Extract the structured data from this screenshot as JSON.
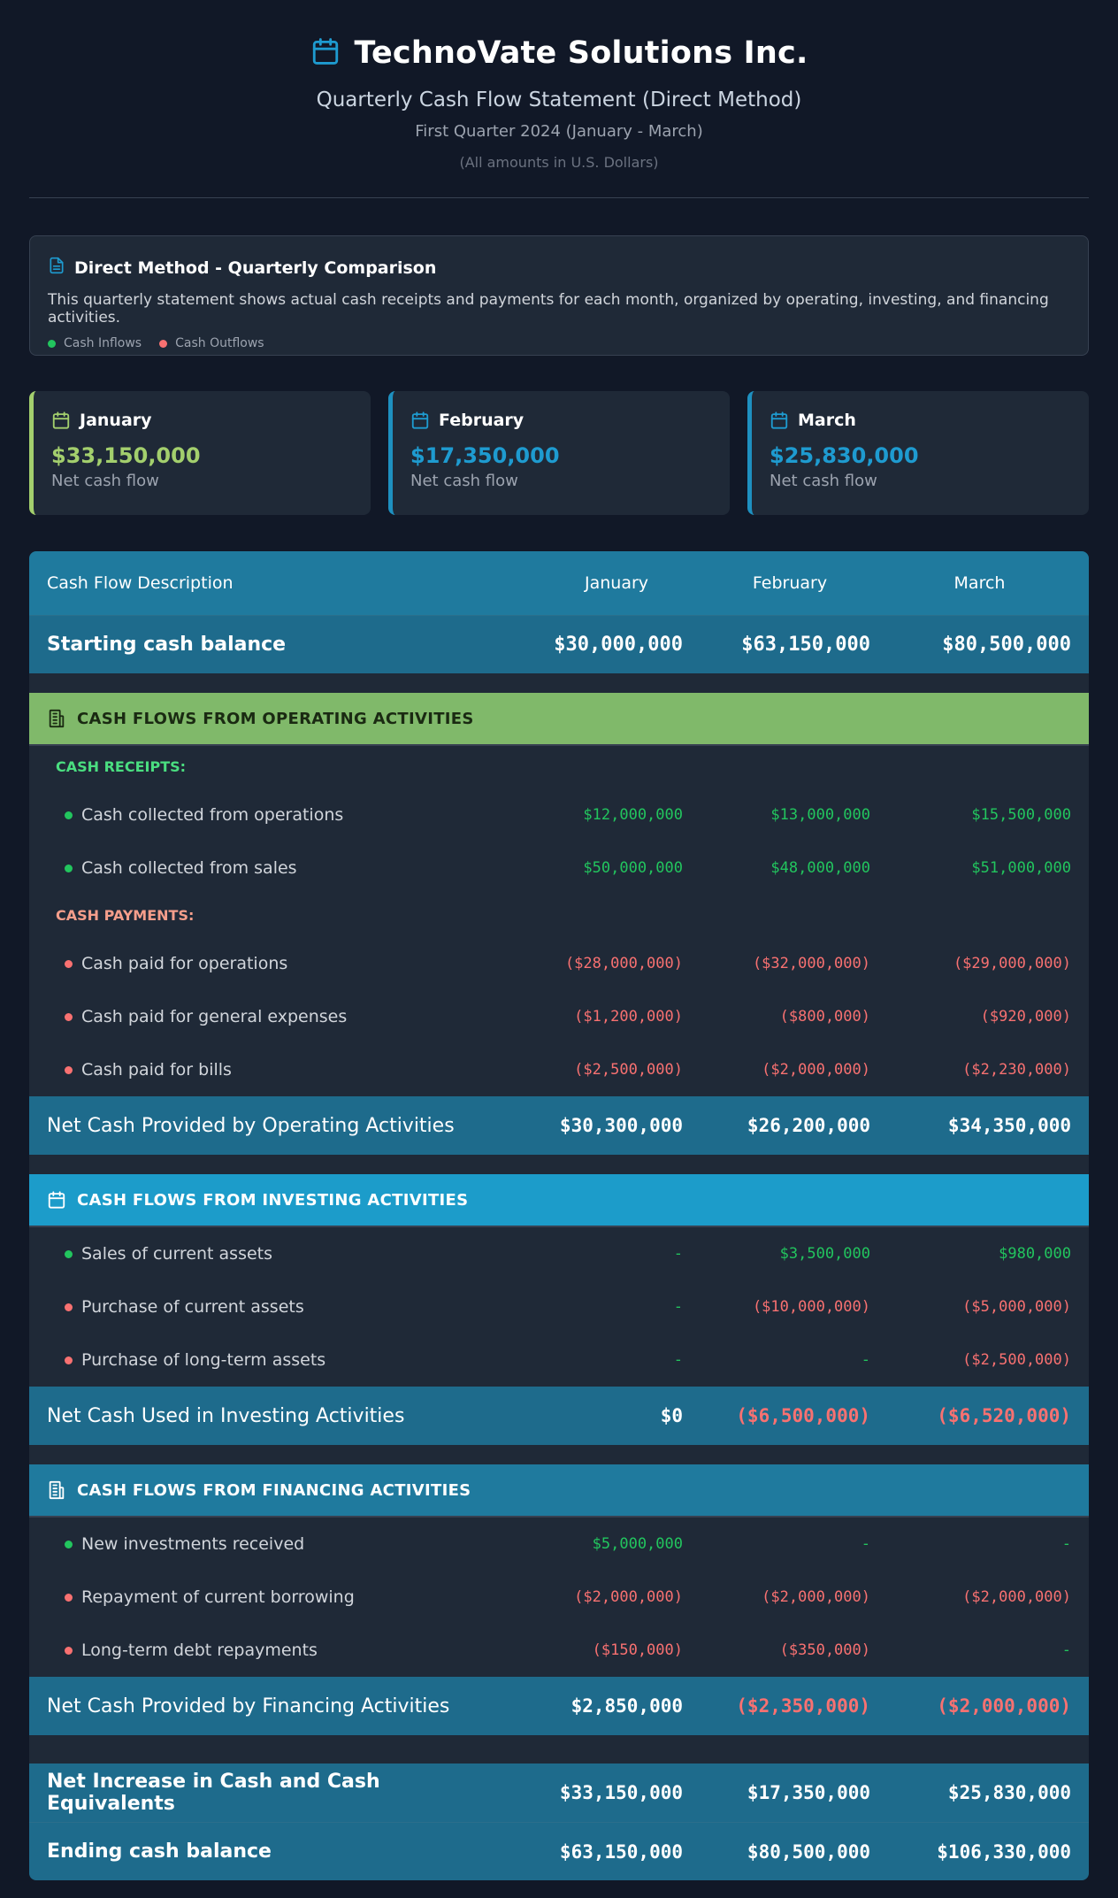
{
  "header": {
    "icon": "calendar-icon",
    "company": "TechnoVate Solutions Inc.",
    "statement": "Quarterly Cash Flow Statement (Direct Method)",
    "period": "First Quarter 2024 (January - March)",
    "currency_note": "(All amounts in U.S. Dollars)"
  },
  "info": {
    "icon": "document-icon",
    "title": "Direct Method - Quarterly Comparison",
    "description": "This quarterly statement shows actual cash receipts and payments for each month, organized by operating, investing, and financing activities.",
    "legend_inflows": "Cash Inflows",
    "legend_outflows": "Cash Outflows",
    "inflow_color": "#22c55e",
    "outflow_color": "#f87171"
  },
  "cards": [
    {
      "month": "January",
      "value": "$33,150,000",
      "caption": "Net cash flow",
      "color": "#a3cf6d"
    },
    {
      "month": "February",
      "value": "$17,350,000",
      "caption": "Net cash flow",
      "color": "#1e9bd0"
    },
    {
      "month": "March",
      "value": "$25,830,000",
      "caption": "Net cash flow",
      "color": "#1e9bd0"
    }
  ],
  "table": {
    "header": [
      "Cash Flow Description",
      "January",
      "February",
      "March"
    ],
    "starting": {
      "label": "Starting cash balance",
      "values": [
        "$30,000,000",
        "$63,150,000",
        "$80,500,000"
      ]
    },
    "operating": {
      "title": "CASH FLOWS FROM OPERATING ACTIVITIES",
      "receipts_label": "CASH RECEIPTS:",
      "receipts": [
        {
          "label": "Cash collected from operations",
          "values": [
            "$12,000,000",
            "$13,000,000",
            "$15,500,000"
          ]
        },
        {
          "label": "Cash collected from sales",
          "values": [
            "$50,000,000",
            "$48,000,000",
            "$51,000,000"
          ]
        }
      ],
      "payments_label": "CASH PAYMENTS:",
      "payments": [
        {
          "label": "Cash paid for operations",
          "values": [
            "($28,000,000)",
            "($32,000,000)",
            "($29,000,000)"
          ]
        },
        {
          "label": "Cash paid for general expenses",
          "values": [
            "($1,200,000)",
            "($800,000)",
            "($920,000)"
          ]
        },
        {
          "label": "Cash paid for bills",
          "values": [
            "($2,500,000)",
            "($2,000,000)",
            "($2,230,000)"
          ]
        }
      ],
      "total": {
        "label": "Net Cash Provided by Operating Activities",
        "values": [
          "$30,300,000",
          "$26,200,000",
          "$34,350,000"
        ]
      }
    },
    "investing": {
      "title": "CASH FLOWS FROM INVESTING ACTIVITIES",
      "items": [
        {
          "label": "Sales of current assets",
          "type": "in",
          "values": [
            "-",
            "$3,500,000",
            "$980,000"
          ]
        },
        {
          "label": "Purchase of current assets",
          "type": "out",
          "values": [
            "-",
            "($10,000,000)",
            "($5,000,000)"
          ]
        },
        {
          "label": "Purchase of long-term assets",
          "type": "out",
          "values": [
            "-",
            "-",
            "($2,500,000)"
          ]
        }
      ],
      "total": {
        "label": "Net Cash Used in Investing Activities",
        "values": [
          "$0",
          "($6,500,000)",
          "($6,520,000)"
        ]
      }
    },
    "financing": {
      "title": "CASH FLOWS FROM FINANCING ACTIVITIES",
      "items": [
        {
          "label": "New investments received",
          "type": "in",
          "values": [
            "$5,000,000",
            "-",
            "-"
          ]
        },
        {
          "label": "Repayment of current borrowing",
          "type": "out",
          "values": [
            "($2,000,000)",
            "($2,000,000)",
            "($2,000,000)"
          ]
        },
        {
          "label": "Long-term debt repayments",
          "type": "out",
          "values": [
            "($150,000)",
            "($350,000)",
            "-"
          ]
        }
      ],
      "total": {
        "label": "Net Cash Provided by Financing Activities",
        "values": [
          "$2,850,000",
          "($2,350,000)",
          "($2,000,000)"
        ]
      }
    },
    "net_increase": {
      "label": "Net Increase in Cash and Cash Equivalents",
      "values": [
        "$33,150,000",
        "$17,350,000",
        "$25,830,000"
      ]
    },
    "ending": {
      "label": "Ending cash balance",
      "values": [
        "$63,150,000",
        "$80,500,000",
        "$106,330,000"
      ]
    }
  }
}
